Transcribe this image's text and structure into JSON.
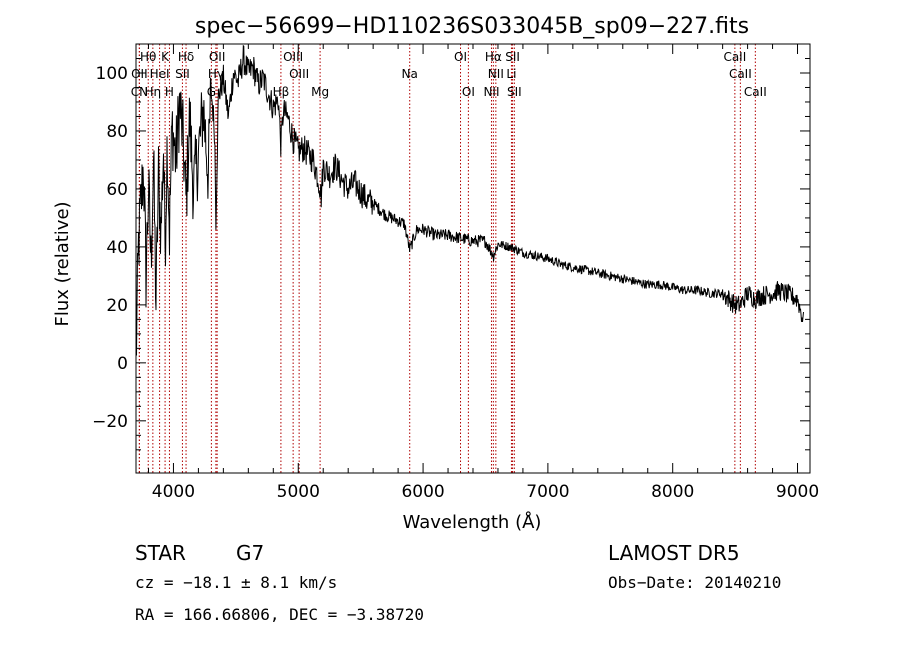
{
  "chart_data": {
    "type": "line",
    "title": "spec−56699−HD110236S033045B_sp09−227.fits",
    "xlabel": "Wavelength (Å)",
    "ylabel": "Flux (relative)",
    "xlim": [
      3700,
      9100
    ],
    "ylim": [
      -38,
      110
    ],
    "xticks": [
      4000,
      5000,
      6000,
      7000,
      8000,
      9000
    ],
    "yticks": [
      -20,
      0,
      20,
      40,
      60,
      80,
      100
    ],
    "ytick_labels": [
      "−20",
      "0",
      "20",
      "40",
      "60",
      "80",
      "100"
    ],
    "series": [
      {
        "x": [
          3700,
          3720,
          3740,
          3760,
          3780,
          3800,
          3820,
          3840,
          3860,
          3880,
          3900,
          3920,
          3933,
          3950,
          3968,
          3990,
          4020,
          4050,
          4080,
          4101,
          4130,
          4160,
          4200,
          4240,
          4280,
          4300,
          4330,
          4340,
          4360,
          4400,
          4440,
          4480,
          4520,
          4560,
          4600,
          4640,
          4680,
          4720,
          4760,
          4800,
          4840,
          4861,
          4880,
          4920,
          4960,
          5000,
          5040,
          5080,
          5120,
          5170,
          5183,
          5200,
          5250,
          5300,
          5350,
          5400,
          5450,
          5500,
          5550,
          5600,
          5650,
          5700,
          5750,
          5800,
          5850,
          5893,
          5950,
          6000,
          6100,
          6200,
          6300,
          6400,
          6500,
          6563,
          6600,
          6700,
          6800,
          6900,
          7000,
          7100,
          7200,
          7300,
          7400,
          7500,
          7600,
          7700,
          7800,
          7900,
          8000,
          8100,
          8200,
          8300,
          8400,
          8450,
          8498,
          8542,
          8600,
          8662,
          8700,
          8800,
          8850,
          8900,
          9000,
          9050
        ],
        "y": [
          0,
          40,
          55,
          68,
          30,
          60,
          35,
          70,
          20,
          65,
          45,
          75,
          40,
          78,
          45,
          82,
          70,
          90,
          75,
          55,
          85,
          60,
          72,
          88,
          65,
          95,
          80,
          50,
          92,
          98,
          85,
          100,
          97,
          105,
          100,
          102,
          96,
          98,
          93,
          88,
          91,
          75,
          87,
          84,
          77,
          73,
          74,
          72,
          70,
          62,
          57,
          68,
          65,
          68,
          63,
          60,
          62,
          59,
          56,
          55,
          53,
          51,
          50,
          49,
          48,
          39,
          46,
          46,
          44,
          44,
          43,
          42,
          42,
          37,
          41,
          40,
          38,
          37,
          36,
          34,
          33,
          32,
          31,
          30,
          29,
          28,
          27,
          27,
          26,
          25,
          25,
          24,
          24,
          22,
          20,
          20,
          24,
          22,
          23,
          24,
          25,
          24,
          22,
          14
        ]
      }
    ],
    "spectral_lines": [
      {
        "label": "Hθ",
        "x": 3798,
        "row": 0
      },
      {
        "label": "K",
        "x": 3933,
        "row": 0
      },
      {
        "label": "Hδ",
        "x": 4101,
        "row": 0
      },
      {
        "label": "OII",
        "x": 4350,
        "row": 0
      },
      {
        "label": "OIII",
        "x": 4959,
        "row": 0
      },
      {
        "label": "OI",
        "x": 6300,
        "row": 0
      },
      {
        "label": "Hα",
        "x": 6563,
        "row": 0
      },
      {
        "label": "SII",
        "x": 6717,
        "row": 0
      },
      {
        "label": "CaII",
        "x": 8498,
        "row": 0
      },
      {
        "label": "OII",
        "x": 3727,
        "row": 1
      },
      {
        "label": "HeI",
        "x": 3889,
        "row": 1
      },
      {
        "label": "SII",
        "x": 4072,
        "row": 1
      },
      {
        "label": "Hγ",
        "x": 4340,
        "row": 1
      },
      {
        "label": "OIII",
        "x": 5007,
        "row": 1
      },
      {
        "label": "Na",
        "x": 5893,
        "row": 1
      },
      {
        "label": "NII",
        "x": 6583,
        "row": 1
      },
      {
        "label": "Li",
        "x": 6708,
        "row": 1
      },
      {
        "label": "CaII",
        "x": 8542,
        "row": 1
      },
      {
        "label": "CN",
        "x": 3727,
        "row": 2
      },
      {
        "label": "Hη",
        "x": 3835,
        "row": 2
      },
      {
        "label": "H",
        "x": 3968,
        "row": 2
      },
      {
        "label": "G",
        "x": 4304,
        "row": 2
      },
      {
        "label": "Hβ",
        "x": 4861,
        "row": 2
      },
      {
        "label": "Mg",
        "x": 5175,
        "row": 2
      },
      {
        "label": "OI",
        "x": 6363,
        "row": 2
      },
      {
        "label": "NII",
        "x": 6548,
        "row": 2
      },
      {
        "label": "SII",
        "x": 6731,
        "row": 2
      },
      {
        "label": "CaII",
        "x": 8662,
        "row": 2
      }
    ],
    "line_color": "#000000",
    "marker_color": "#b00000"
  },
  "info": {
    "class": "STAR",
    "subclass": "G7",
    "cz": "cz = −18.1 ± 8.1 km/s",
    "coords": "RA = 166.66806, DEC =  −3.38720",
    "survey": "LAMOST DR5",
    "obs_date": "Obs−Date: 20140210"
  }
}
